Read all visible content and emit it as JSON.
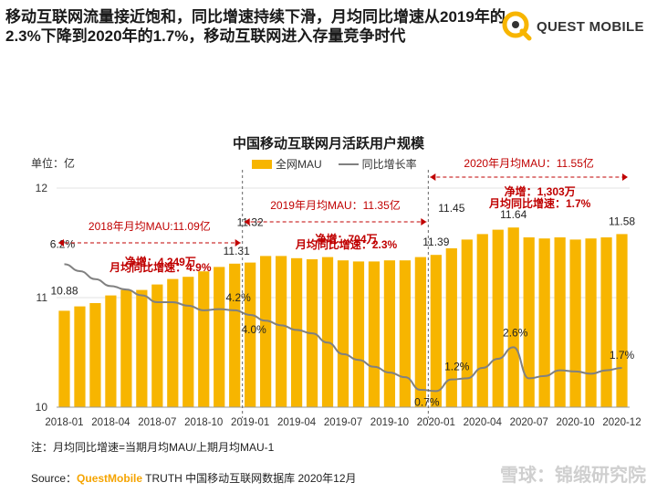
{
  "headline": "移动互联网流量接近饱和，同比增速持续下滑，月均同比增速从2019年的2.3%下降到2020年的1.7%，移动互联网进入存量竞争时代",
  "brand": {
    "name": "QUEST MOBILE",
    "accent": "#f7b500"
  },
  "chart_data": {
    "type": "bar",
    "title": "中国移动互联网月活跃用户规模",
    "unit_label": "单位：亿",
    "ylim": [
      10,
      12
    ],
    "yticks": [
      "10",
      "11",
      "12"
    ],
    "xticks": [
      "2018-01",
      "2018-04",
      "2018-07",
      "2018-10",
      "2019-01",
      "2019-04",
      "2019-07",
      "2019-10",
      "2020-01",
      "2020-04",
      "2020-07",
      "2020-10",
      "2020-12"
    ],
    "series": [
      {
        "name": "全网MAU",
        "type": "bar",
        "color": "#f7b500",
        "values": [
          10.88,
          10.92,
          10.95,
          11.02,
          11.07,
          11.07,
          11.12,
          11.17,
          11.19,
          11.24,
          11.28,
          11.31,
          11.32,
          11.38,
          11.38,
          11.36,
          11.35,
          11.37,
          11.34,
          11.33,
          11.33,
          11.34,
          11.34,
          11.37,
          11.39,
          11.45,
          11.53,
          11.58,
          11.62,
          11.64,
          11.55,
          11.54,
          11.55,
          11.53,
          11.54,
          11.55,
          11.58
        ]
      },
      {
        "name": "同比增长率",
        "type": "line",
        "color": "#808080",
        "values": [
          6.2,
          5.9,
          5.55,
          5.25,
          5.1,
          4.85,
          4.55,
          4.55,
          4.4,
          4.2,
          4.25,
          4.2,
          4.0,
          3.75,
          3.55,
          3.35,
          3.2,
          2.8,
          2.3,
          2.05,
          1.75,
          1.5,
          1.3,
          0.75,
          0.7,
          1.2,
          1.25,
          1.7,
          2.1,
          2.6,
          1.25,
          1.35,
          1.6,
          1.55,
          1.45,
          1.6,
          1.7
        ],
        "range": [
          0,
          9.5
        ]
      }
    ],
    "bar_labels": [
      {
        "index": 0,
        "text": "10.88"
      },
      {
        "index": 11,
        "text": "11.31"
      },
      {
        "index": 12,
        "text": "11.32"
      },
      {
        "index": 24,
        "text": "11.39"
      },
      {
        "index": 25,
        "text": "11.45"
      },
      {
        "index": 29,
        "text": "11.64"
      },
      {
        "index": 36,
        "text": "11.58"
      }
    ],
    "line_labels": [
      {
        "index": 0,
        "text": "6.2%"
      },
      {
        "index": 11,
        "text": "4.2%"
      },
      {
        "index": 12,
        "text": "4.0%"
      },
      {
        "index": 24,
        "text": "0.7%"
      },
      {
        "index": 25,
        "text": "1.2%"
      },
      {
        "index": 29,
        "text": "2.6%"
      },
      {
        "index": 36,
        "text": "1.7%"
      }
    ],
    "annotations": [
      {
        "range": [
          0,
          11
        ],
        "title": "2018年月均MAU:11.09亿",
        "line1": "净增：4,249万",
        "line2": "月均同比增速：4.9%"
      },
      {
        "range": [
          12,
          23
        ],
        "title": "2019年月均MAU：11.35亿",
        "line1": "净增：704万",
        "line2": "月均同比增速：2.3%"
      },
      {
        "range": [
          24,
          36
        ],
        "title": "2020年月均MAU：11.55亿",
        "line1": "净增：1,303万",
        "line2": "月均同比增速：1.7%"
      }
    ]
  },
  "note": "注：月均同比增速=当期月均MAU/上期月均MAU-1",
  "source": {
    "prefix": "Source：",
    "brand": "QuestMobile",
    "rest": " TRUTH 中国移动互联网数据库 2020年12月"
  },
  "watermark": "雪球：锦缎研究院"
}
